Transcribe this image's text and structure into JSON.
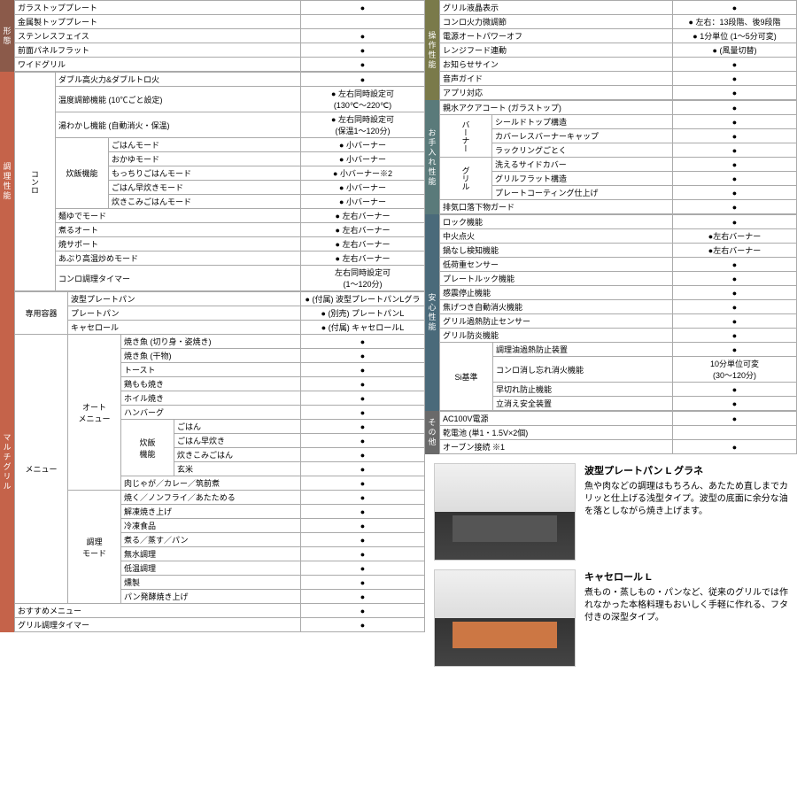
{
  "left": {
    "sec1": {
      "tab": "形態",
      "rows": [
        [
          "ガラストッププレート",
          "●"
        ],
        [
          "金属製トッププレート",
          ""
        ],
        [
          "ステンレスフェイス",
          "●"
        ],
        [
          "前面パネルフラット",
          "●"
        ],
        [
          "ワイドグリル",
          "●"
        ]
      ]
    },
    "sec2": {
      "tab": "調理性能",
      "side": "コンロ",
      "rows1": [
        [
          "ダブル高火力&ダブルトロ火",
          "●"
        ],
        [
          "温度調節機能 (10℃ごと設定)",
          "● 左右同時設定可\n(130℃～220℃)"
        ],
        [
          "湯わかし機能 (自動消火・保温)",
          "● 左右同時設定可\n(保温1～120分)"
        ]
      ],
      "rice_label": "炊飯機能",
      "rice": [
        [
          "ごはんモード",
          "● 小バーナー"
        ],
        [
          "おかゆモード",
          "● 小バーナー"
        ],
        [
          "もっちりごはんモード",
          "● 小バーナー※2"
        ],
        [
          "ごはん早炊きモード",
          "● 小バーナー"
        ],
        [
          "炊きこみごはんモード",
          "● 小バーナー"
        ]
      ],
      "rows2": [
        [
          "麺ゆでモード",
          "● 左右バーナー"
        ],
        [
          "煮るオート",
          "● 左右バーナー"
        ],
        [
          "焼サポート",
          "● 左右バーナー"
        ],
        [
          "あぶり高温炒めモード",
          "● 左右バーナー"
        ],
        [
          "コンロ調理タイマー",
          "左右同時設定可\n(1～120分)"
        ]
      ]
    },
    "sec3": {
      "tab": "マルチグリル",
      "container_label": "専用容器",
      "container": [
        [
          "波型プレートパン",
          "● (付属) 波型プレートパンLグラ"
        ],
        [
          "プレートパン",
          "● (別売) プレートパンL"
        ],
        [
          "キャセロール",
          "● (付属) キャセロールL"
        ]
      ],
      "menu_label": "メニュー",
      "auto_label": "オート\nメニュー",
      "auto": [
        [
          "焼き魚 (切り身・姿焼き)",
          "●"
        ],
        [
          "焼き魚 (干物)",
          "●"
        ],
        [
          "トースト",
          "●"
        ],
        [
          "鶏もも焼き",
          "●"
        ],
        [
          "ホイル焼き",
          "●"
        ],
        [
          "ハンバーグ",
          "●"
        ]
      ],
      "rice2_label": "炊飯\n機能",
      "rice2": [
        [
          "ごはん",
          "●"
        ],
        [
          "ごはん早炊き",
          "●"
        ],
        [
          "炊きこみごはん",
          "●"
        ],
        [
          "玄米",
          "●"
        ]
      ],
      "auto2": [
        [
          "肉じゃが／カレー／筑前煮",
          "●"
        ]
      ],
      "cook_label": "調理\nモード",
      "cook": [
        [
          "焼く／ノンフライ／あたためる",
          "●"
        ],
        [
          "解凍焼き上げ",
          "●"
        ],
        [
          "冷凍食品",
          "●"
        ],
        [
          "煮る／蒸す／パン",
          "●"
        ],
        [
          "無水調理",
          "●"
        ],
        [
          "低温調理",
          "●"
        ],
        [
          "燻製",
          "●"
        ],
        [
          "パン発酵焼き上げ",
          "●"
        ]
      ],
      "rows3": [
        [
          "おすすめメニュー",
          "●"
        ],
        [
          "グリル調理タイマー",
          "●"
        ]
      ]
    }
  },
  "right": {
    "sec1": {
      "tab": "操作性能",
      "rows": [
        [
          "グリル液晶表示",
          "●"
        ],
        [
          "コンロ火力微調節",
          "● 左右：13段階、後9段階"
        ],
        [
          "電源オートパワーオフ",
          "● 1分単位 (1～5分可変)"
        ],
        [
          "レンジフード連動",
          "● (風量切替)"
        ],
        [
          "お知らせサイン",
          "●"
        ],
        [
          "音声ガイド",
          "●"
        ],
        [
          "アプリ対応",
          "●"
        ]
      ]
    },
    "sec2": {
      "tab": "お手入れ性能",
      "rows1": [
        [
          "親水アクアコート (ガラストップ)",
          "●"
        ]
      ],
      "side1": "バーナー",
      "burner": [
        [
          "シールドトップ構造",
          "●"
        ],
        [
          "カバーレスバーナーキャップ",
          "●"
        ],
        [
          "ラックリングごとく",
          "●"
        ]
      ],
      "side2": "グリル",
      "grill": [
        [
          "洗えるサイドカバー",
          "●"
        ],
        [
          "グリルフラット構造",
          "●"
        ],
        [
          "プレートコーティング仕上げ",
          "●"
        ]
      ],
      "rows2": [
        [
          "排気口落下物ガード",
          "●"
        ]
      ]
    },
    "sec3": {
      "tab": "安心性能",
      "rows1": [
        [
          "ロック機能",
          "●"
        ],
        [
          "中火点火",
          "●左右バーナー"
        ],
        [
          "鍋なし検知機能",
          "●左右バーナー"
        ],
        [
          "低荷重センサー",
          "●"
        ],
        [
          "プレートルック機能",
          "●"
        ],
        [
          "感震停止機能",
          "●"
        ],
        [
          "焦げつき自動消火機能",
          "●"
        ],
        [
          "グリル過熱防止センサー",
          "●"
        ],
        [
          "グリル防炎機能",
          "●"
        ]
      ],
      "si_label": "Si基準",
      "si": [
        [
          "調理油過熱防止装置",
          "●"
        ],
        [
          "コンロ消し忘れ消火機能",
          "10分単位可変\n(30～120分)"
        ],
        [
          "早切れ防止機能",
          "●"
        ],
        [
          "立消え安全装置",
          "●"
        ]
      ]
    },
    "sec4": {
      "tab": "その他",
      "rows": [
        [
          "AC100V電源",
          "●"
        ],
        [
          "乾電池 (単1・1.5V×2個)",
          ""
        ],
        [
          "オーブン接続 ※1",
          "●"
        ]
      ]
    },
    "products": [
      {
        "title": "波型プレートパン L グラネ",
        "desc": "魚や肉などの調理はもちろん、あたため直しまでカリッと仕上げる浅型タイプ。波型の底面に余分な油を落としながら焼き上げます。",
        "tray": ""
      },
      {
        "title": "キャセロール L",
        "desc": "煮もの・蒸しもの・パンなど、従来のグリルでは作れなかった本格料理もおいしく手軽に作れる、フタ付きの深型タイプ。",
        "tray": "orange"
      }
    ]
  }
}
